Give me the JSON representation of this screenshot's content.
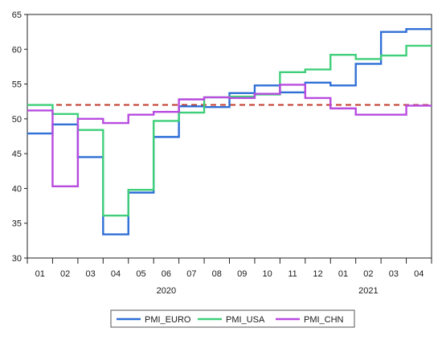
{
  "chart_data": {
    "type": "line",
    "title": "",
    "xlabel": "",
    "ylabel": "",
    "ylim": [
      30,
      65
    ],
    "yticks": [
      30,
      35,
      40,
      45,
      50,
      55,
      60,
      65
    ],
    "categories": [
      "01",
      "02",
      "03",
      "04",
      "05",
      "06",
      "07",
      "08",
      "09",
      "10",
      "11",
      "12",
      "01",
      "02",
      "03",
      "04"
    ],
    "year_labels": [
      {
        "label": "2020",
        "center_index": 5.5
      },
      {
        "label": "2021",
        "center_index": 13.5
      }
    ],
    "grid": false,
    "step": true,
    "legend_position": "bottom",
    "reference_line": {
      "value": 52.0,
      "color": "#c0392b",
      "style": "dashed"
    },
    "series": [
      {
        "name": "PMI_EURO",
        "color": "#2f6fd6",
        "values": [
          47.9,
          49.2,
          44.5,
          33.4,
          39.4,
          47.4,
          51.8,
          51.7,
          53.7,
          54.8,
          53.8,
          55.2,
          54.8,
          57.9,
          62.5,
          62.9
        ]
      },
      {
        "name": "PMI_USA",
        "color": "#3fcf7a",
        "values": [
          52.0,
          50.7,
          48.4,
          36.1,
          39.8,
          49.7,
          50.9,
          53.1,
          53.2,
          53.5,
          56.7,
          57.1,
          59.2,
          58.6,
          59.1,
          60.5
        ]
      },
      {
        "name": "PMI_CHN",
        "color": "#b84be0",
        "values": [
          51.2,
          40.3,
          50.0,
          49.4,
          50.6,
          51.0,
          52.8,
          53.1,
          53.0,
          53.6,
          54.9,
          53.0,
          51.5,
          50.6,
          50.6,
          51.9
        ]
      }
    ]
  }
}
